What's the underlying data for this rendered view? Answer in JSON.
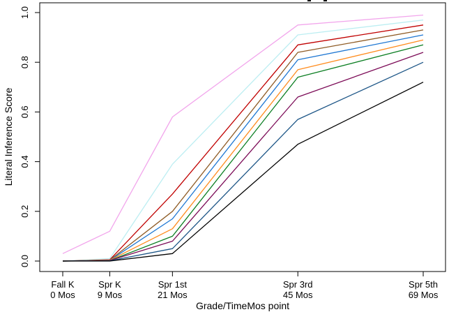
{
  "chart_data": {
    "type": "line",
    "title": "",
    "xlabel": "Grade/TimeMos point",
    "ylabel": "Literal Inference Score",
    "x_months": [
      0,
      9,
      21,
      45,
      69
    ],
    "x_tick_labels": [
      {
        "grade": "Fall K",
        "months": "0 Mos"
      },
      {
        "grade": "Spr K",
        "months": "9 Mos"
      },
      {
        "grade": "Spr 1st",
        "months": "21 Mos"
      },
      {
        "grade": "Spr 3rd",
        "months": "45 Mos"
      },
      {
        "grade": "Spr 5th",
        "months": "69 Mos"
      }
    ],
    "y_ticks": [
      "0.0",
      "0.2",
      "0.4",
      "0.6",
      "0.8",
      "1.0"
    ],
    "ylim": [
      0,
      1
    ],
    "xlim_months": [
      0,
      69
    ],
    "grid": false,
    "legend": "none",
    "series": [
      {
        "name": "line-pink",
        "color": "#F2A6EC",
        "values": [
          0.03,
          0.12,
          0.58,
          0.95,
          0.99
        ]
      },
      {
        "name": "line-lightcyan",
        "color": "#BCEEF2",
        "values": [
          0.0,
          0.01,
          0.39,
          0.91,
          0.97
        ]
      },
      {
        "name": "line-red",
        "color": "#C00000",
        "values": [
          0.0,
          0.005,
          0.27,
          0.87,
          0.95
        ]
      },
      {
        "name": "line-brown",
        "color": "#8E5B25",
        "values": [
          0.0,
          0.004,
          0.2,
          0.84,
          0.93
        ]
      },
      {
        "name": "line-blue",
        "color": "#1D76D2",
        "values": [
          0.0,
          0.003,
          0.17,
          0.81,
          0.91
        ]
      },
      {
        "name": "line-orange",
        "color": "#FF8C1E",
        "values": [
          0.0,
          0.003,
          0.13,
          0.77,
          0.89
        ]
      },
      {
        "name": "line-green",
        "color": "#0B7E22",
        "values": [
          0.0,
          0.002,
          0.1,
          0.74,
          0.87
        ]
      },
      {
        "name": "line-wine",
        "color": "#7C0B57",
        "values": [
          0.0,
          0.002,
          0.08,
          0.66,
          0.84
        ]
      },
      {
        "name": "line-steelblue",
        "color": "#1D5687",
        "values": [
          0.0,
          0.001,
          0.05,
          0.57,
          0.8
        ]
      },
      {
        "name": "line-black",
        "color": "#000000",
        "values": [
          0.0,
          0.0,
          0.03,
          0.47,
          0.72
        ]
      }
    ]
  }
}
